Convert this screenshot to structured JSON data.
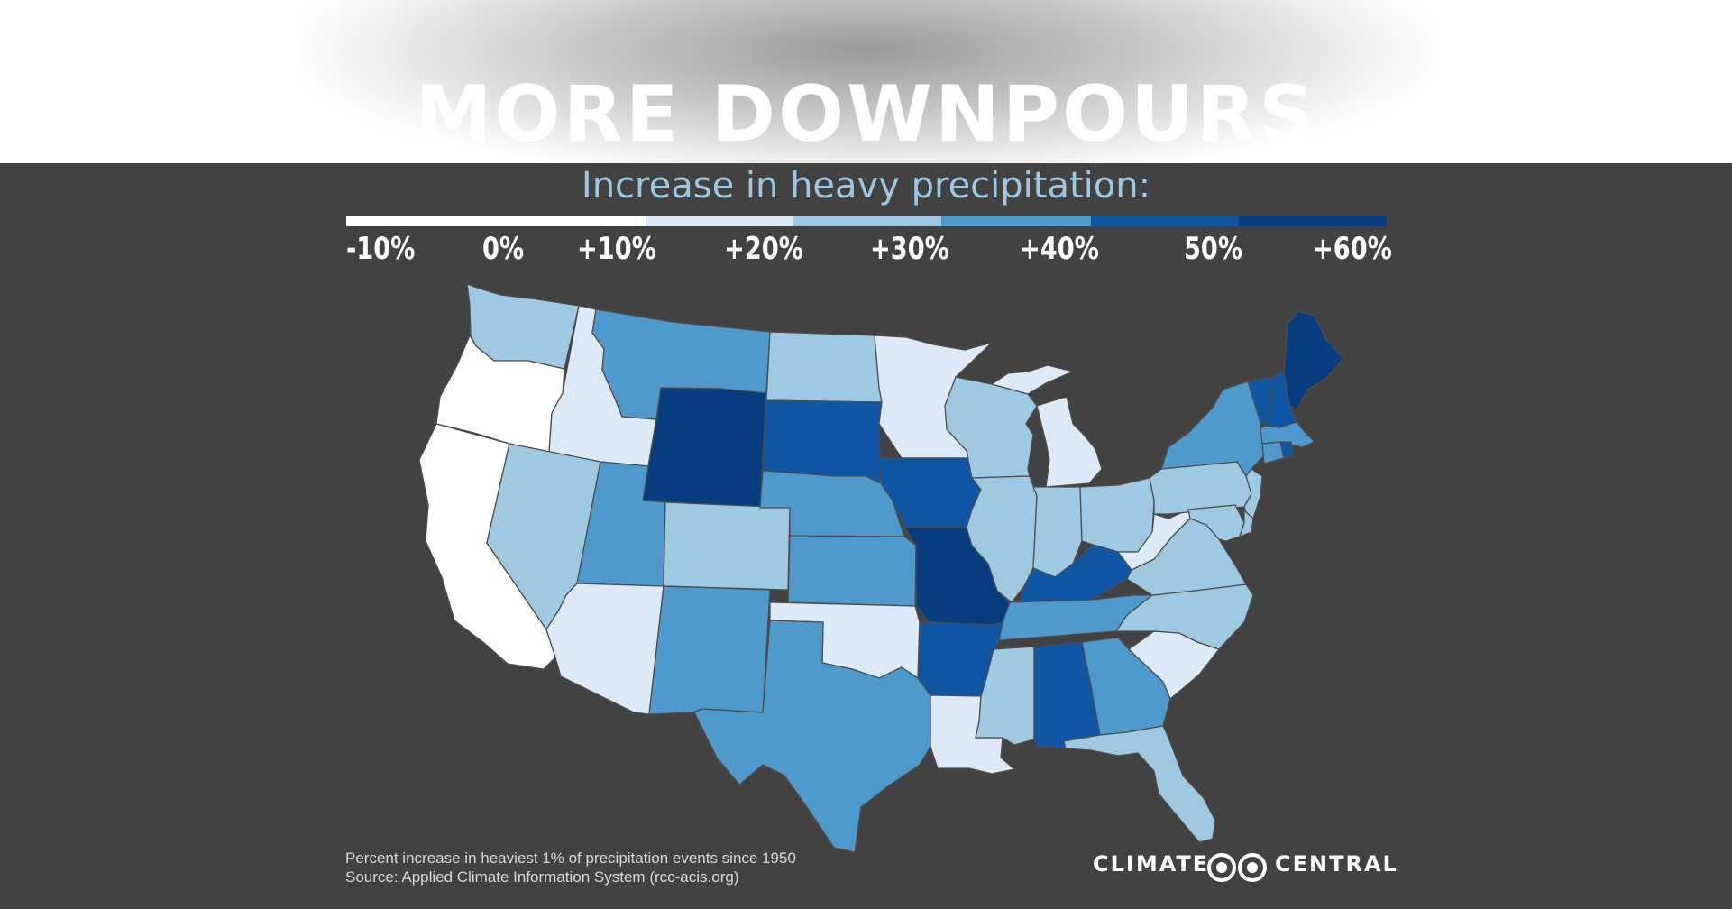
{
  "title": "MORE DOWNPOURS",
  "subtitle": "Increase in heavy precipitation:",
  "legend": {
    "labels": [
      "-10%",
      "0%",
      "+10%",
      "+20%",
      "+30%",
      "+40%",
      "50%",
      "+60%"
    ],
    "classes": [
      {
        "range": "-10% to +10%",
        "color": "#ffffff"
      },
      {
        "range": "+10% to +20%",
        "color": "#dce9f7"
      },
      {
        "range": "+20% to +30%",
        "color": "#9fc9e1"
      },
      {
        "range": "+30% to +40%",
        "color": "#4f9acc"
      },
      {
        "range": "+40% to +50%",
        "color": "#0f56a5"
      },
      {
        "range": "+50% to +60%",
        "color": "#073c7e"
      }
    ]
  },
  "map_data": {
    "metric": "Percent increase in heaviest 1% of precipitation events since 1950",
    "states": {
      "WA": "+20% to +30%",
      "OR": "-10% to +10%",
      "CA": "-10% to +10%",
      "ID": "+10% to +20%",
      "NV": "+20% to +30%",
      "MT": "+30% to +40%",
      "WY": "+50% to +60%",
      "UT": "+30% to +40%",
      "AZ": "+10% to +20%",
      "CO": "+20% to +30%",
      "NM": "+30% to +40%",
      "ND": "+20% to +30%",
      "SD": "+40% to +50%",
      "NE": "+30% to +40%",
      "KS": "+30% to +40%",
      "OK": "+10% to +20%",
      "TX": "+30% to +40%",
      "MN": "+10% to +20%",
      "IA": "+40% to +50%",
      "MO": "+50% to +60%",
      "AR": "+40% to +50%",
      "LA": "+10% to +20%",
      "WI": "+20% to +30%",
      "IL": "+20% to +30%",
      "MI": "+10% to +20%",
      "IN": "+20% to +30%",
      "OH": "+20% to +30%",
      "KY": "+40% to +50%",
      "TN": "+30% to +40%",
      "MS": "+20% to +30%",
      "AL": "+40% to +50%",
      "GA": "+30% to +40%",
      "FL": "+20% to +30%",
      "SC": "+10% to +20%",
      "NC": "+20% to +30%",
      "VA": "+20% to +30%",
      "WV": "+10% to +20%",
      "PA": "+20% to +30%",
      "NY": "+30% to +40%",
      "VT": "+40% to +50%",
      "NH": "+40% to +50%",
      "ME": "+50% to +60%",
      "MA": "+30% to +40%",
      "CT": "+30% to +40%",
      "RI": "+40% to +50%",
      "NJ": "+20% to +30%",
      "DE": "+20% to +30%",
      "MD": "+20% to +30%"
    }
  },
  "footnote": {
    "line1": "Percent increase in heaviest 1% of precipitation events since 1950",
    "line2": "Source: Applied Climate Information System (rcc-acis.org)"
  },
  "brand": {
    "left": "CLIMATE",
    "right": "CENTRAL"
  }
}
